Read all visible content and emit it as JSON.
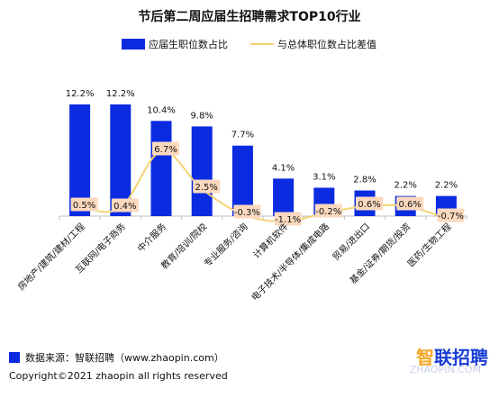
{
  "title": "节后第二周应届生招聘需求TOP10行业",
  "legend": {
    "bar_label": "应届生职位数占比",
    "line_label": "与总体职位数占比差值"
  },
  "colors": {
    "bar": "#0a2be0",
    "line": "#f5d373",
    "label_box": "#fbd9bf"
  },
  "chart_data": {
    "type": "bar",
    "title": "节后第二周应届生招聘需求TOP10行业",
    "categories": [
      "房地产/建筑/建材/工程",
      "互联网/电子商务",
      "中介服务",
      "教育/培训/院校",
      "专业服务/咨询",
      "计算机软件",
      "电子技术/半导体/集成电路",
      "贸易/进出口",
      "基金/证券/期货/投资",
      "医药/生物工程"
    ],
    "series": [
      {
        "name": "应届生职位数占比",
        "type": "bar",
        "values": [
          12.2,
          12.2,
          10.4,
          9.8,
          7.7,
          4.1,
          3.1,
          2.8,
          2.2,
          2.2
        ],
        "labels": [
          "12.2%",
          "12.2%",
          "10.4%",
          "9.8%",
          "7.7%",
          "4.1%",
          "3.1%",
          "2.8%",
          "2.2%",
          "2.2%"
        ]
      },
      {
        "name": "与总体职位数占比差值",
        "type": "line",
        "values": [
          0.5,
          0.4,
          6.7,
          2.5,
          -0.3,
          -1.1,
          -0.2,
          0.6,
          0.6,
          -0.7
        ],
        "labels": [
          "0.5%",
          "0.4%",
          "6.7%",
          "2.5%",
          "-0.3%",
          "-1.1%",
          "-0.2%",
          "0.6%",
          "0.6%",
          "-0.7%"
        ]
      }
    ],
    "grid": false,
    "legend_position": "top"
  },
  "footer": {
    "source": "数据来源：智联招聘（www.zhaopin.com）",
    "copyright": "Copyright©2021 zhaopin all rights reserved"
  },
  "logo": {
    "text_a": "智",
    "text_b": "联招聘"
  },
  "watermark": "ZHAOPIN.COM"
}
